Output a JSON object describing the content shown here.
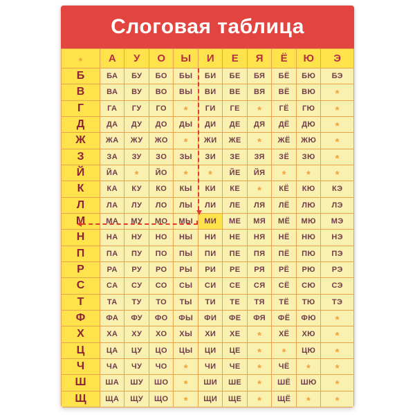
{
  "poster": {
    "title": "Слоговая таблица",
    "table": {
      "corner_symbol": "*",
      "missing_symbol": "*",
      "vowels": [
        "А",
        "У",
        "О",
        "Ы",
        "И",
        "Е",
        "Я",
        "Ё",
        "Ю",
        "Э"
      ],
      "rows": [
        {
          "consonant": "Б",
          "cells": [
            "БА",
            "БУ",
            "БО",
            "БЫ",
            "БИ",
            "БЕ",
            "БЯ",
            "БЁ",
            "БЮ",
            "БЭ"
          ]
        },
        {
          "consonant": "В",
          "cells": [
            "ВА",
            "ВУ",
            "ВО",
            "ВЫ",
            "ВИ",
            "ВЕ",
            "ВЯ",
            "ВЁ",
            "ВЮ",
            "*"
          ]
        },
        {
          "consonant": "Г",
          "cells": [
            "ГА",
            "ГУ",
            "ГО",
            "*",
            "ГИ",
            "ГЕ",
            "*",
            "ГЁ",
            "ГЮ",
            "*"
          ]
        },
        {
          "consonant": "Д",
          "cells": [
            "ДА",
            "ДУ",
            "ДО",
            "ДЫ",
            "ДИ",
            "ДЕ",
            "ДЯ",
            "ДЁ",
            "ДЮ",
            "*"
          ]
        },
        {
          "consonant": "Ж",
          "cells": [
            "ЖА",
            "ЖУ",
            "ЖО",
            "*",
            "ЖИ",
            "ЖЕ",
            "*",
            "ЖЁ",
            "ЖЮ",
            "*"
          ]
        },
        {
          "consonant": "З",
          "cells": [
            "ЗА",
            "ЗУ",
            "ЗО",
            "ЗЫ",
            "ЗИ",
            "ЗЕ",
            "ЗЯ",
            "ЗЁ",
            "ЗЮ",
            "*"
          ]
        },
        {
          "consonant": "Й",
          "cells": [
            "ЙА",
            "*",
            "ЙО",
            "*",
            "*",
            "ЙЕ",
            "ЙЯ",
            "*",
            "*",
            "*"
          ]
        },
        {
          "consonant": "К",
          "cells": [
            "КА",
            "КУ",
            "КО",
            "КЫ",
            "КИ",
            "КЕ",
            "*",
            "КЁ",
            "КЮ",
            "КЭ"
          ]
        },
        {
          "consonant": "Л",
          "cells": [
            "ЛА",
            "ЛУ",
            "ЛО",
            "ЛЫ",
            "ЛИ",
            "ЛЕ",
            "ЛЯ",
            "ЛЁ",
            "ЛЮ",
            "ЛЭ"
          ]
        },
        {
          "consonant": "М",
          "cells": [
            "МА",
            "МУ",
            "МО",
            "МЫ",
            "МИ",
            "МЕ",
            "МЯ",
            "МЁ",
            "МЮ",
            "МЭ"
          ]
        },
        {
          "consonant": "Н",
          "cells": [
            "НА",
            "НУ",
            "НО",
            "НЫ",
            "НИ",
            "НЕ",
            "НЯ",
            "НЁ",
            "НЮ",
            "НЭ"
          ]
        },
        {
          "consonant": "П",
          "cells": [
            "ПА",
            "ПУ",
            "ПО",
            "ПЫ",
            "ПИ",
            "ПЕ",
            "ПЯ",
            "ПЁ",
            "ПЮ",
            "ПЭ"
          ]
        },
        {
          "consonant": "Р",
          "cells": [
            "РА",
            "РУ",
            "РО",
            "РЫ",
            "РИ",
            "РЕ",
            "РЯ",
            "РЁ",
            "РЮ",
            "РЭ"
          ]
        },
        {
          "consonant": "С",
          "cells": [
            "СА",
            "СУ",
            "СО",
            "СЫ",
            "СИ",
            "СЕ",
            "СЯ",
            "СЁ",
            "СЮ",
            "СЭ"
          ]
        },
        {
          "consonant": "Т",
          "cells": [
            "ТА",
            "ТУ",
            "ТО",
            "ТЫ",
            "ТИ",
            "ТЕ",
            "ТЯ",
            "ТЁ",
            "ТЮ",
            "ТЭ"
          ]
        },
        {
          "consonant": "Ф",
          "cells": [
            "ФА",
            "ФУ",
            "ФО",
            "ФЫ",
            "ФИ",
            "ФЕ",
            "ФЯ",
            "ФЁ",
            "ФЮ",
            "*"
          ]
        },
        {
          "consonant": "Х",
          "cells": [
            "ХА",
            "ХУ",
            "ХО",
            "ХЫ",
            "ХИ",
            "ХЕ",
            "*",
            "ХЁ",
            "ХЮ",
            "*"
          ]
        },
        {
          "consonant": "Ц",
          "cells": [
            "ЦА",
            "ЦУ",
            "ЦО",
            "ЦЫ",
            "ЦИ",
            "ЦЕ",
            "*",
            "*",
            "ЦЮ",
            "*"
          ]
        },
        {
          "consonant": "Ч",
          "cells": [
            "ЧА",
            "ЧУ",
            "ЧО",
            "*",
            "ЧИ",
            "ЧЕ",
            "*",
            "ЧЁ",
            "*",
            "*"
          ]
        },
        {
          "consonant": "Ш",
          "cells": [
            "ША",
            "ШУ",
            "ШО",
            "*",
            "ШИ",
            "ШЕ",
            "*",
            "ШЁ",
            "ШЮ",
            "*"
          ]
        },
        {
          "consonant": "Щ",
          "cells": [
            "ЩА",
            "ЩУ",
            "ЩО",
            "*",
            "ЩИ",
            "ЩЕ",
            "*",
            "ЩЁ",
            "*",
            "*"
          ]
        }
      ],
      "highlight": {
        "consonant": "М",
        "vowel": "И",
        "syllable": "МИ"
      }
    },
    "colors": {
      "banner_red": "#e2453f",
      "bright_yellow": "#ffe34d",
      "pale_yellow": "#faf0b0",
      "border_orange": "#e9a34c",
      "vowel_letter_red": "#b52e44",
      "consonant_letter_red": "#8e2137",
      "syllable_text": "#713c49",
      "asterisk_orange": "#f0a33c",
      "dash_red": "#e0392f",
      "title_text": "#ffffff"
    }
  }
}
